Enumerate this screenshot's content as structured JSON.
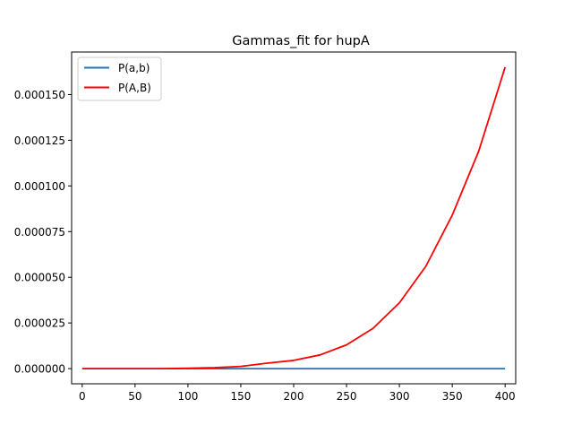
{
  "chart_data": {
    "type": "line",
    "title": "Gammas_fit for hupA",
    "xlabel": "",
    "ylabel": "",
    "xlim": [
      -10,
      410
    ],
    "ylim": [
      -8.3e-06,
      0.0001733
    ],
    "x_ticks": [
      0,
      50,
      100,
      150,
      200,
      250,
      300,
      350,
      400
    ],
    "y_ticks": [
      0.0,
      2.5e-05,
      5e-05,
      7.5e-05,
      0.0001,
      0.000125,
      0.00015
    ],
    "x_tick_labels": [
      "0",
      "50",
      "100",
      "150",
      "200",
      "250",
      "300",
      "350",
      "400"
    ],
    "y_tick_labels": [
      "0.000000",
      "0.000025",
      "0.000050",
      "0.000075",
      "0.000100",
      "0.000125",
      "0.000150"
    ],
    "legend": {
      "position": "top-left"
    },
    "grid": false,
    "series": [
      {
        "name": "P(a,b)",
        "color": "#1f77b4",
        "x": [
          0,
          50,
          100,
          150,
          200,
          250,
          300,
          350,
          400
        ],
        "y": [
          0,
          0,
          0,
          0,
          0,
          0,
          0,
          0,
          0
        ]
      },
      {
        "name": "P(A,B)",
        "color": "#ff0000",
        "x": [
          0,
          25,
          50,
          75,
          100,
          125,
          150,
          175,
          200,
          225,
          250,
          275,
          300,
          325,
          350,
          375,
          400
        ],
        "y": [
          0,
          0,
          0,
          0,
          2e-07,
          5e-07,
          1.2e-06,
          3e-06,
          4.5e-06,
          7.5e-06,
          1.3e-05,
          2.2e-05,
          3.6e-05,
          5.6e-05,
          8.4e-05,
          0.000119,
          0.000165
        ]
      }
    ]
  }
}
